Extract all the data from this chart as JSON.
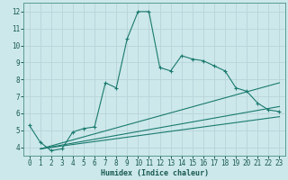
{
  "title": "",
  "xlabel": "Humidex (Indice chaleur)",
  "ylabel": "",
  "bg_color": "#cce8eb",
  "grid_color": "#b8d4d8",
  "line_color": "#1a7a6e",
  "xlim": [
    -0.5,
    23.5
  ],
  "ylim": [
    3.5,
    12.5
  ],
  "xticks": [
    0,
    1,
    2,
    3,
    4,
    5,
    6,
    7,
    8,
    9,
    10,
    11,
    12,
    13,
    14,
    15,
    16,
    17,
    18,
    19,
    20,
    21,
    22,
    23
  ],
  "yticks": [
    4,
    5,
    6,
    7,
    8,
    9,
    10,
    11,
    12
  ],
  "main_x": [
    0,
    1,
    2,
    3,
    4,
    5,
    6,
    7,
    8,
    9,
    10,
    11,
    12,
    13,
    14,
    15,
    16,
    17,
    18,
    19,
    20,
    21,
    22,
    23
  ],
  "main_y": [
    5.3,
    4.3,
    3.8,
    3.9,
    4.9,
    5.1,
    5.2,
    7.8,
    7.5,
    10.4,
    12.0,
    12.0,
    8.7,
    8.5,
    9.4,
    9.2,
    9.1,
    8.8,
    8.5,
    7.5,
    7.3,
    6.6,
    6.2,
    6.1
  ],
  "line2_x": [
    1,
    23
  ],
  "line2_y": [
    3.9,
    7.8
  ],
  "line3_x": [
    1,
    23
  ],
  "line3_y": [
    3.9,
    6.4
  ],
  "line4_x": [
    1,
    23
  ],
  "line4_y": [
    3.9,
    5.8
  ]
}
